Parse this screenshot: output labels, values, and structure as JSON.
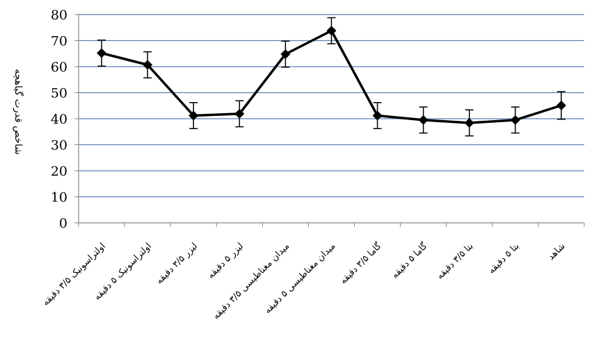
{
  "chart_data": {
    "type": "line",
    "title": "",
    "xlabel": "",
    "ylabel": "شاخص قدرت گیاهچه",
    "ylim": [
      0,
      80
    ],
    "yticks": [
      0,
      10,
      20,
      30,
      40,
      50,
      60,
      70,
      80
    ],
    "grid": true,
    "categories": [
      "اولتراسونیک ۳/۵ دقیقه",
      "اولتراسونیک ۵ دقیقه",
      "لیزر ۳/۵ دقیقه",
      "لیزر ۵ دقیقه",
      "میدان مغناطیسی ۳/۵ دقیقه",
      "میدان مغناطیسی ۵ دقیقه",
      "گاما ۳/۵ دقیقه",
      "گاما ۵ دقیقه",
      "بتا ۳/۵ دقیقه",
      "بتا ۵ دقیقه",
      "شاهد"
    ],
    "series": [
      {
        "values": [
          65.2,
          60.7,
          41.2,
          41.9,
          64.8,
          73.8,
          41.2,
          39.5,
          38.4,
          39.5,
          45.1
        ],
        "errors": [
          5.0,
          5.0,
          5.0,
          5.0,
          5.0,
          5.0,
          5.0,
          5.0,
          5.0,
          5.0,
          5.3
        ],
        "color": "#000000"
      }
    ],
    "colors": {
      "grid": "#5b7fb5",
      "line": "#000000"
    }
  }
}
